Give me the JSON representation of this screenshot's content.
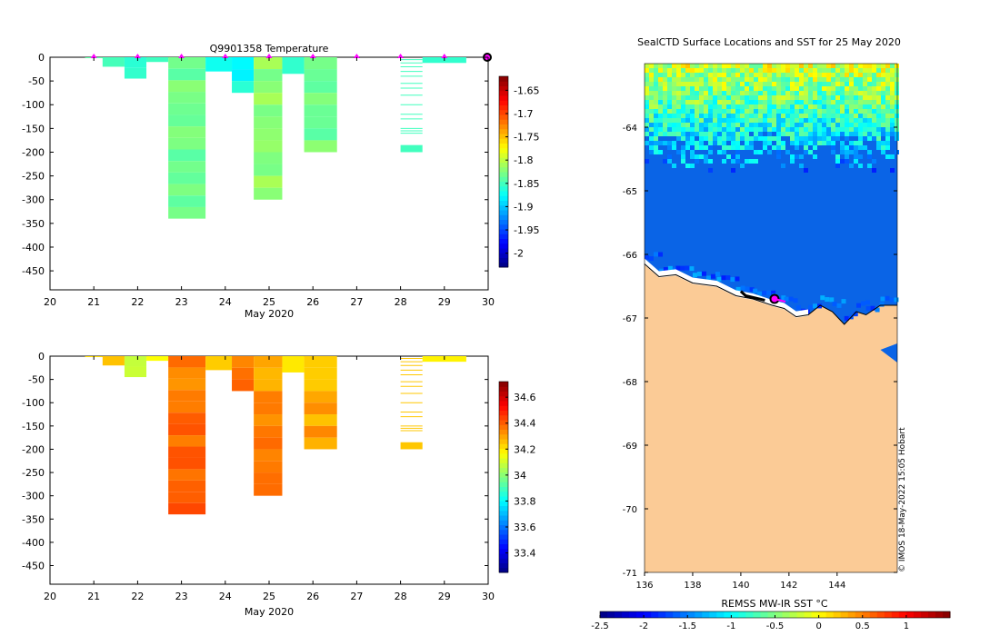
{
  "figure": {
    "top_title": "Q9901358  Temperature",
    "top_xlabel": "May 2020",
    "bottom_xlabel": "May 2020",
    "map_title": "SealCTD Surface Locations and SST for 25 May 2020",
    "map_colorbar_label": "REMSS MW-IR SST °C",
    "credit": "© IMOS 18-May-2022 15:05 Hobart"
  },
  "chart_data": [
    {
      "id": "temperature",
      "type": "heatmap",
      "title": "Q9901358  Temperature",
      "xlabel": "May 2020",
      "ylabel": "",
      "xlim": [
        20,
        30
      ],
      "ylim": [
        -490,
        0
      ],
      "xticks": [
        20,
        21,
        22,
        23,
        24,
        25,
        26,
        27,
        28,
        29,
        30
      ],
      "xtick_labels": [
        "20",
        "21",
        "22",
        "23",
        "24",
        "25",
        "26",
        "27",
        "28",
        "29",
        "30"
      ],
      "yticks": [
        0,
        -50,
        -100,
        -150,
        -200,
        -250,
        -300,
        -350,
        -400,
        -450
      ],
      "ytick_labels": [
        "0",
        "-50",
        "-100",
        "-150",
        "-200",
        "-250",
        "-300",
        "-350",
        "-400",
        "-450"
      ],
      "colorbar": {
        "range": [
          -2.03,
          -1.62
        ],
        "ticks": [
          -1.65,
          -1.7,
          -1.75,
          -1.8,
          -1.85,
          -1.9,
          -1.95,
          -2
        ],
        "tick_labels": [
          "-1.65",
          "-1.7",
          "-1.75",
          "-1.8",
          "-1.85",
          "-1.9",
          "-1.95",
          "-2"
        ],
        "colormap": "jet"
      },
      "markers": [
        21.0,
        22.0,
        23.0,
        24.0,
        25.0,
        26.0,
        27.0,
        28.0,
        29.0,
        30.0
      ],
      "profiles": [
        {
          "x0": 20.8,
          "x1": 21.2,
          "depth": 2,
          "value": -1.84
        },
        {
          "x0": 21.2,
          "x1": 21.7,
          "depth": 20,
          "value": -1.85
        },
        {
          "x0": 21.7,
          "x1": 22.2,
          "depth": 45,
          "value": -1.85
        },
        {
          "x0": 22.2,
          "x1": 22.7,
          "depth": 10,
          "value": -1.85
        },
        {
          "x0": 22.7,
          "x1": 23.55,
          "depth": 340,
          "value": -1.83
        },
        {
          "x0": 23.55,
          "x1": 24.15,
          "depth": 30,
          "value": -1.87
        },
        {
          "x0": 24.15,
          "x1": 24.65,
          "depth": 75,
          "value": -1.87
        },
        {
          "x0": 24.65,
          "x1": 25.3,
          "depth": 300,
          "value": -1.82
        },
        {
          "x0": 25.3,
          "x1": 25.8,
          "depth": 35,
          "value": -1.85
        },
        {
          "x0": 25.8,
          "x1": 26.55,
          "depth": 200,
          "value": -1.83
        },
        {
          "x0": 28.0,
          "x1": 28.5,
          "depth": 200,
          "value": -1.85
        },
        {
          "x0": 28.5,
          "x1": 29.5,
          "depth": 12,
          "value": -1.85
        }
      ]
    },
    {
      "id": "salinity",
      "type": "heatmap",
      "title": "",
      "xlabel": "May 2020",
      "ylabel": "",
      "xlim": [
        20,
        30
      ],
      "ylim": [
        -490,
        0
      ],
      "xticks": [
        20,
        21,
        22,
        23,
        24,
        25,
        26,
        27,
        28,
        29,
        30
      ],
      "xtick_labels": [
        "20",
        "21",
        "22",
        "23",
        "24",
        "25",
        "26",
        "27",
        "28",
        "29",
        "30"
      ],
      "yticks": [
        0,
        -50,
        -100,
        -150,
        -200,
        -250,
        -300,
        -350,
        -400,
        -450
      ],
      "ytick_labels": [
        "0",
        "-50",
        "-100",
        "-150",
        "-200",
        "-250",
        "-300",
        "-350",
        "-400",
        "-450"
      ],
      "colorbar": {
        "range": [
          33.25,
          34.72
        ],
        "ticks": [
          34.6,
          34.4,
          34.2,
          34,
          33.8,
          33.6,
          33.4
        ],
        "tick_labels": [
          "34.6",
          "34.4",
          "34.2",
          "34",
          "33.8",
          "33.6",
          "33.4"
        ],
        "colormap": "jet"
      },
      "profiles": [
        {
          "x0": 20.8,
          "x1": 21.2,
          "depth": 2,
          "value": 34.2
        },
        {
          "x0": 21.2,
          "x1": 21.7,
          "depth": 20,
          "value": 34.25
        },
        {
          "x0": 21.7,
          "x1": 22.2,
          "depth": 45,
          "value": 34.05
        },
        {
          "x0": 22.2,
          "x1": 22.7,
          "depth": 10,
          "value": 34.2
        },
        {
          "x0": 22.7,
          "x1": 23.55,
          "depth": 340,
          "value": 34.35
        },
        {
          "x0": 23.55,
          "x1": 24.15,
          "depth": 30,
          "value": 34.2
        },
        {
          "x0": 24.15,
          "x1": 24.65,
          "depth": 75,
          "value": 34.38
        },
        {
          "x0": 24.65,
          "x1": 25.3,
          "depth": 300,
          "value": 34.3
        },
        {
          "x0": 25.3,
          "x1": 25.8,
          "depth": 35,
          "value": 34.2
        },
        {
          "x0": 25.8,
          "x1": 26.55,
          "depth": 200,
          "value": 34.25
        },
        {
          "x0": 28.0,
          "x1": 28.5,
          "depth": 200,
          "value": 34.25
        },
        {
          "x0": 28.5,
          "x1": 29.5,
          "depth": 12,
          "value": 34.2
        }
      ]
    },
    {
      "id": "sst_map",
      "type": "heatmap",
      "title": "SealCTD Surface Locations and SST for 25 May 2020",
      "xlabel": "",
      "ylabel": "",
      "xlim": [
        136,
        146.5
      ],
      "ylim": [
        -71,
        -63
      ],
      "xticks": [
        136,
        138,
        140,
        142,
        144
      ],
      "xtick_labels": [
        "136",
        "138",
        "140",
        "142",
        "144"
      ],
      "yticks": [
        -64,
        -65,
        -66,
        -67,
        -68,
        -69,
        -70,
        -71
      ],
      "ytick_labels": [
        "-64",
        "-65",
        "-66",
        "-67",
        "-68",
        "-69",
        "-70",
        "-71"
      ],
      "colorbar": {
        "label": "REMSS MW-IR SST °C",
        "range": [
          -2.5,
          1.5
        ],
        "ticks": [
          -2.5,
          -2,
          -1.5,
          -1,
          -0.5,
          0,
          0.5,
          1
        ],
        "tick_labels": [
          "-2.5",
          "-2",
          "-1.5",
          "-1",
          "-0.5",
          "0",
          "0.5",
          "1"
        ],
        "colormap": "jet"
      },
      "surface_location": {
        "lon": 141.4,
        "lat": -66.7
      }
    }
  ]
}
